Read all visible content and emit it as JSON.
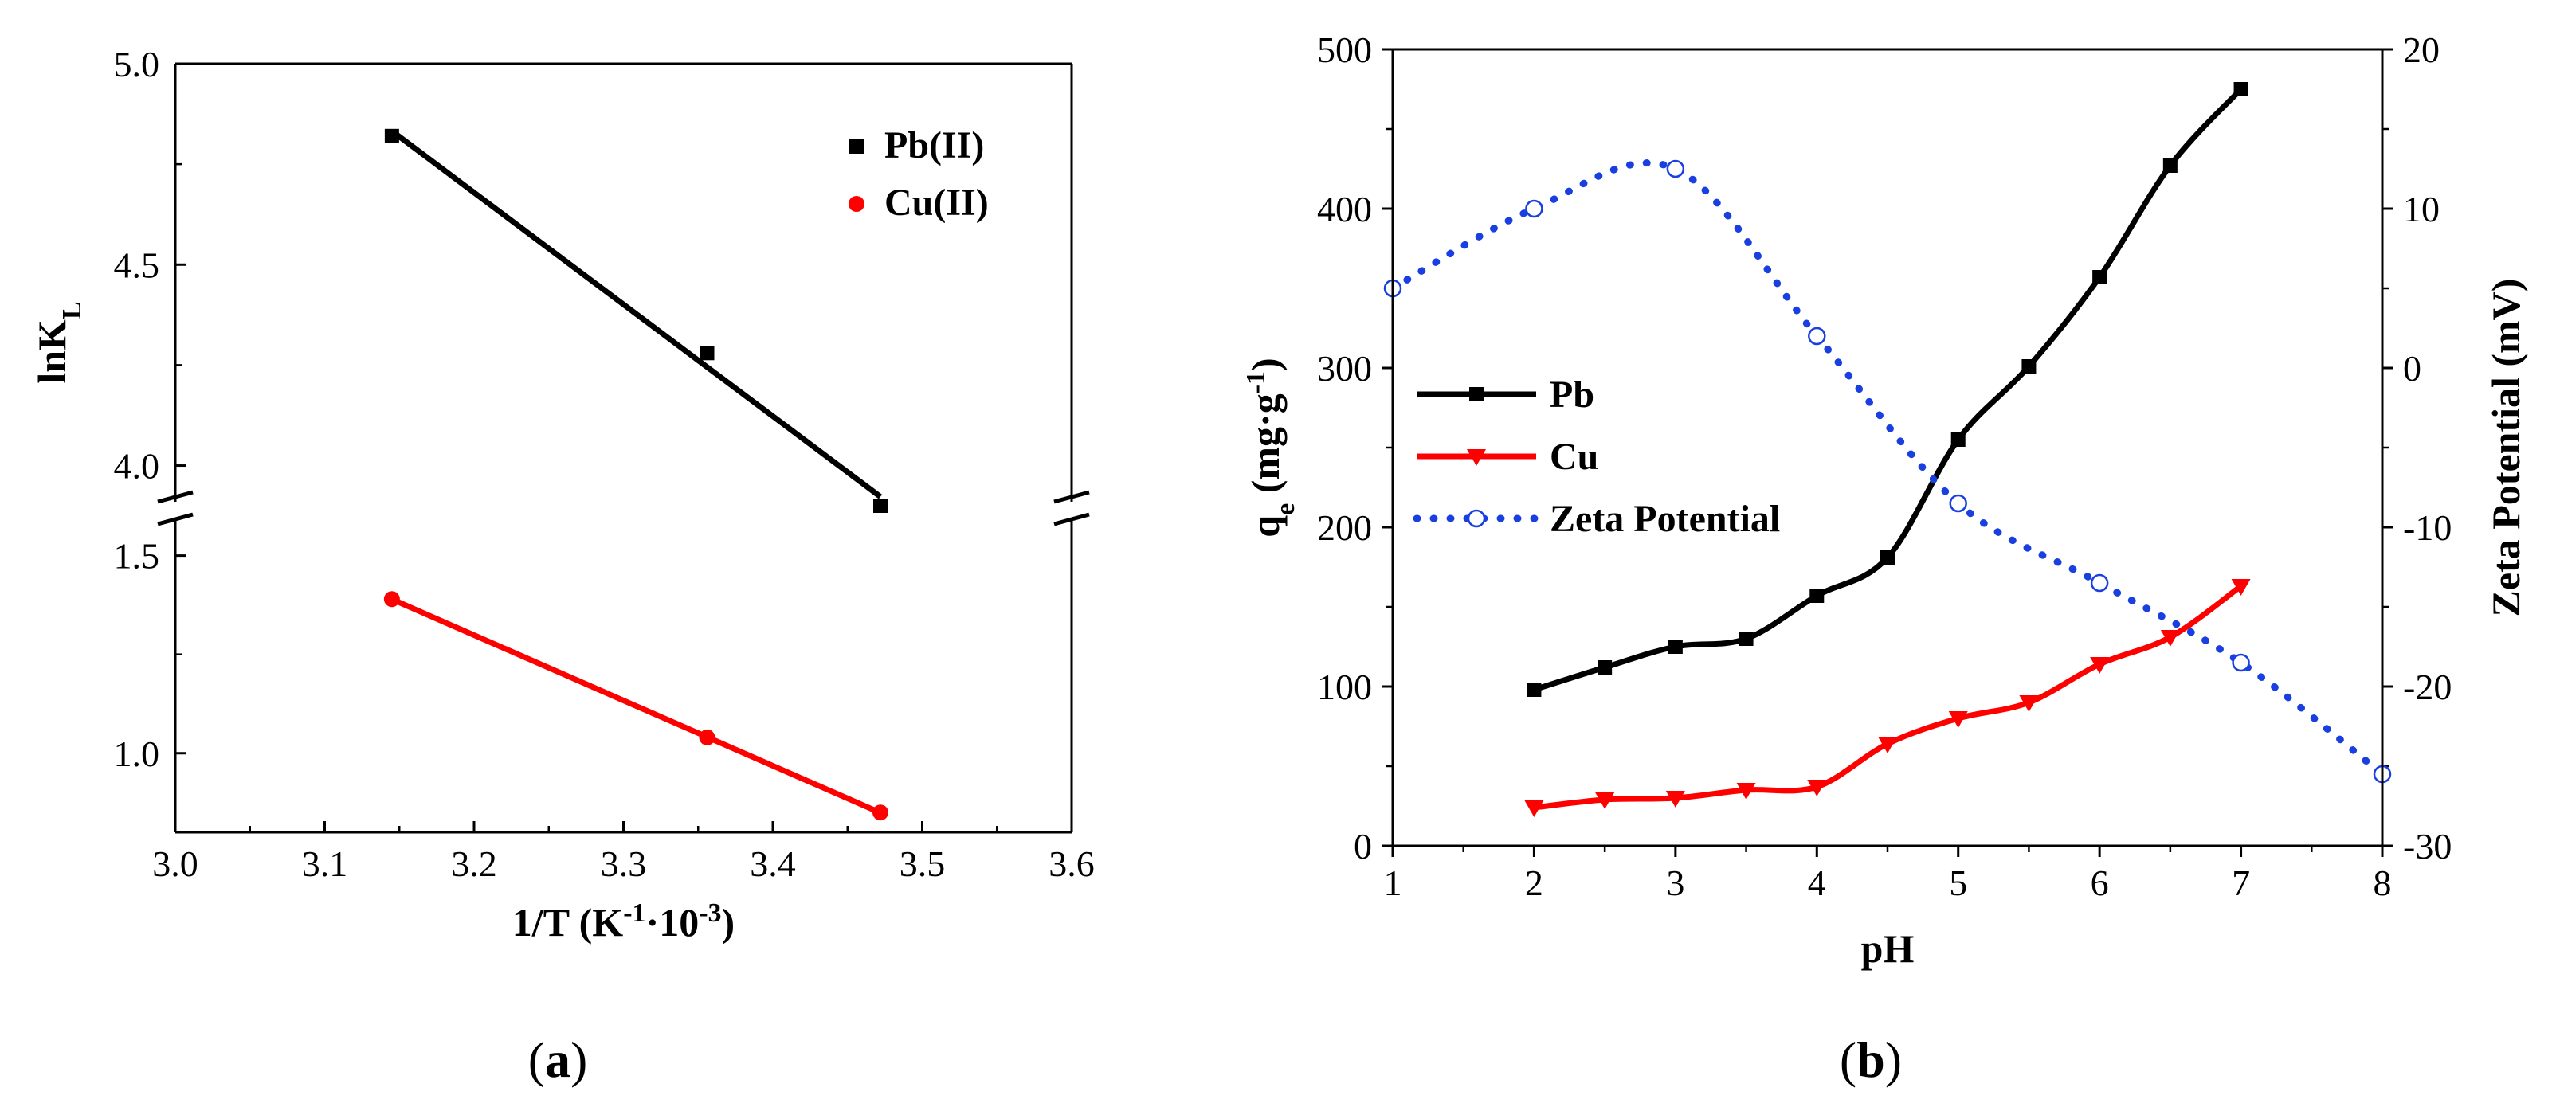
{
  "chart_data": [
    {
      "id": "a",
      "type": "scatter",
      "panel_label": "a",
      "title": "",
      "xlabel": "1/T (K",
      "xlabel_sup1": "-1",
      "xlabel_mid": "·10",
      "xlabel_sup2": "-3",
      "xlabel_end": ")",
      "ylabel": "lnK",
      "ylabel_sub": "L",
      "xlim": [
        3.0,
        3.6
      ],
      "x_ticks": [
        "3.0",
        "3.1",
        "3.2",
        "3.3",
        "3.4",
        "3.5",
        "3.6"
      ],
      "y_break": true,
      "upper_ylim": [
        3.9,
        5.0
      ],
      "upper_y_ticks": [
        "4.0",
        "4.5",
        "5.0"
      ],
      "lower_ylim": [
        0.8,
        1.6
      ],
      "lower_y_ticks": [
        "1.0",
        "1.5"
      ],
      "legend_position": "top-right",
      "series": [
        {
          "name": "Pb(II)",
          "color": "#000000",
          "marker": "square",
          "fit_line": true,
          "x": [
            3.145,
            3.356,
            3.472
          ],
          "y": [
            4.82,
            4.28,
            3.9
          ]
        },
        {
          "name": "Cu(II)",
          "color": "#ff0000",
          "marker": "circle",
          "fit_line": true,
          "x": [
            3.145,
            3.356,
            3.472
          ],
          "y": [
            1.39,
            1.04,
            0.85
          ]
        }
      ]
    },
    {
      "id": "b",
      "type": "line",
      "panel_label": "b",
      "title": "",
      "xlabel": "pH",
      "ylabel": "q",
      "ylabel_sub": "e",
      "ylabel_rest": " (mg·g",
      "ylabel_sup": "-1",
      "ylabel_end": ")",
      "y2label": "Zeta Potential (mV)",
      "xlim": [
        1,
        8
      ],
      "ylim": [
        0,
        500
      ],
      "y2lim": [
        -30,
        20
      ],
      "x_ticks": [
        "1",
        "2",
        "3",
        "4",
        "5",
        "6",
        "7",
        "8"
      ],
      "y_ticks": [
        "0",
        "100",
        "200",
        "300",
        "400",
        "500"
      ],
      "y2_ticks": [
        "-30",
        "-20",
        "-10",
        "0",
        "10",
        "20"
      ],
      "legend_position": "center-left",
      "series": [
        {
          "name": "Pb",
          "color": "#000000",
          "marker": "square",
          "axis": "left",
          "x": [
            2,
            2.5,
            3,
            3.5,
            4,
            4.5,
            5,
            5.5,
            6,
            6.5,
            7
          ],
          "y": [
            98,
            112,
            125,
            130,
            157,
            181,
            255,
            301,
            357,
            427,
            475
          ]
        },
        {
          "name": "Cu",
          "color": "#ff0000",
          "marker": "triangle-down",
          "axis": "left",
          "x": [
            2,
            2.5,
            3,
            3.5,
            4,
            4.5,
            5,
            5.5,
            6,
            6.5,
            7
          ],
          "y": [
            24,
            29,
            30,
            35,
            37,
            64,
            80,
            90,
            114,
            131,
            163
          ]
        },
        {
          "name": "Zeta Potential",
          "color": "#1a3fe0",
          "marker": "open-circle",
          "axis": "right",
          "dashed": true,
          "x": [
            1,
            2,
            3,
            4,
            5,
            6,
            7,
            8
          ],
          "y": [
            5.0,
            10.0,
            12.5,
            2.0,
            -8.5,
            -13.5,
            -18.5,
            -25.5
          ]
        }
      ]
    }
  ]
}
